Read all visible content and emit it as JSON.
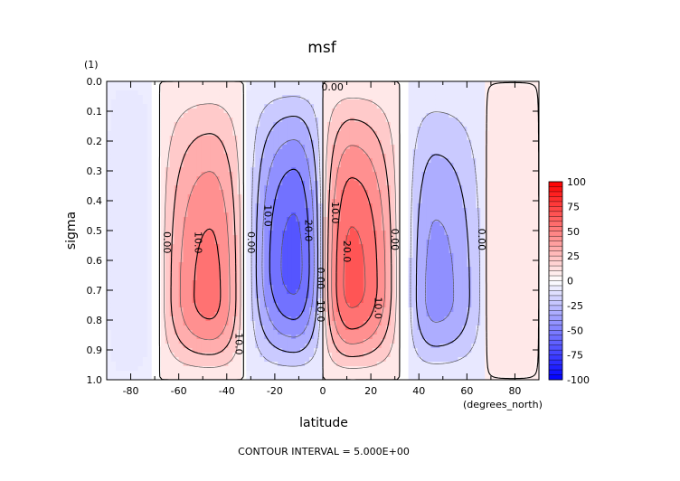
{
  "chart_data": {
    "type": "contour",
    "title": "msf",
    "xlabel": "latitude",
    "x_unit_label": "(degrees_north)",
    "ylabel": "sigma",
    "y_unit_label": "(1)",
    "xlim": [
      -90,
      90
    ],
    "ylim": [
      1.0,
      0.0
    ],
    "x_ticks": [
      -80,
      -60,
      -40,
      -20,
      0,
      20,
      40,
      60,
      80
    ],
    "y_ticks": [
      "0.0",
      "0.1",
      "0.2",
      "0.3",
      "0.4",
      "0.5",
      "0.6",
      "0.7",
      "0.8",
      "0.9",
      "1.0"
    ],
    "contour_interval_text": "CONTOUR INTERVAL = 5.000E+00",
    "contour_labels": [
      {
        "text": "0.00",
        "lat": 4,
        "sigma": 0.02
      },
      {
        "text": "0.00",
        "lat": -65,
        "sigma": 0.54
      },
      {
        "text": "10.0",
        "lat": -52,
        "sigma": 0.54
      },
      {
        "text": "10.0",
        "lat": -35,
        "sigma": 0.88
      },
      {
        "text": "0.00",
        "lat": -30,
        "sigma": 0.54
      },
      {
        "text": "10.0",
        "lat": -23,
        "sigma": 0.45
      },
      {
        "text": "20.0",
        "lat": -6,
        "sigma": 0.5
      },
      {
        "text": "0.00",
        "lat": -1,
        "sigma": 0.66
      },
      {
        "text": "10.0",
        "lat": -1,
        "sigma": 0.77
      },
      {
        "text": "10.0",
        "lat": 5,
        "sigma": 0.44
      },
      {
        "text": "20.0",
        "lat": 10,
        "sigma": 0.57
      },
      {
        "text": "10.0",
        "lat": 23,
        "sigma": 0.76
      },
      {
        "text": "0.00",
        "lat": 30,
        "sigma": 0.53
      },
      {
        "text": "0.00",
        "lat": 66,
        "sigma": 0.53
      }
    ],
    "colorbar": {
      "ticks": [
        "100",
        "75",
        "50",
        "25",
        "0",
        "-25",
        "-50",
        "-75",
        "-100"
      ],
      "range": [
        -100,
        100
      ]
    },
    "cells": [
      {
        "sign": "positive",
        "lat_range": [
          -68,
          -33
        ],
        "peak_lat": -47,
        "peak_sigma": 0.72,
        "peak_value": 22
      },
      {
        "sign": "negative",
        "lat_range": [
          -31,
          0
        ],
        "peak_lat": -12,
        "peak_sigma": 0.62,
        "peak_value": -27
      },
      {
        "sign": "positive",
        "lat_range": [
          0,
          32
        ],
        "peak_lat": 12,
        "peak_sigma": 0.68,
        "peak_value": 27
      },
      {
        "sign": "negative",
        "lat_range": [
          35,
          68
        ],
        "peak_lat": 47,
        "peak_sigma": 0.72,
        "peak_value": -17
      }
    ],
    "colors": {
      "positive_max": "#ff0000",
      "negative_max": "#0000ff",
      "zero": "#ffffff"
    }
  }
}
